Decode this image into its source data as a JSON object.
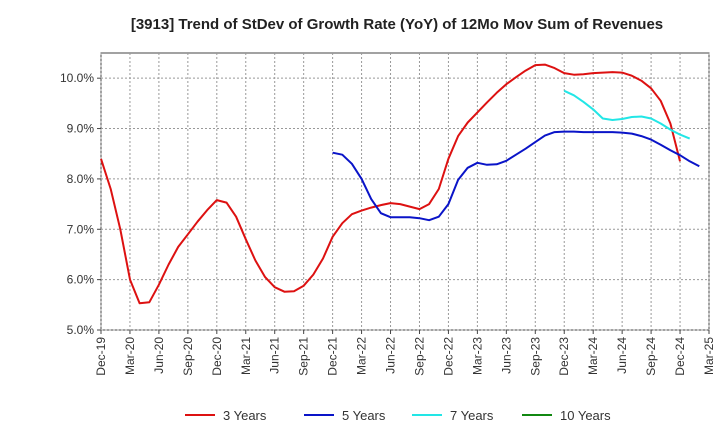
{
  "chart_data": {
    "type": "line",
    "title": "[3913]  Trend of StDev of Growth Rate (YoY) of 12Mo Mov Sum of Revenues",
    "xlabel": "",
    "ylabel": "",
    "ylim": [
      5.0,
      10.5
    ],
    "yticks": [
      5.0,
      6.0,
      7.0,
      8.0,
      9.0,
      10.0
    ],
    "ytick_labels": [
      "5.0%",
      "6.0%",
      "7.0%",
      "8.0%",
      "9.0%",
      "10.0%"
    ],
    "x_tick_labels": [
      "Dec-19",
      "Mar-20",
      "Jun-20",
      "Sep-20",
      "Dec-20",
      "Mar-21",
      "Jun-21",
      "Sep-21",
      "Dec-21",
      "Mar-22",
      "Jun-22",
      "Sep-22",
      "Dec-22",
      "Mar-23",
      "Jun-23",
      "Sep-23",
      "Dec-23",
      "Mar-24",
      "Jun-24",
      "Sep-24",
      "Dec-24",
      "Mar-25"
    ],
    "grid": true,
    "legend_position": "bottom",
    "series": [
      {
        "name": "3 Years",
        "color": "#dd1111",
        "start_month_index": 0,
        "values": [
          8.4,
          7.8,
          7.0,
          6.0,
          5.53,
          5.55,
          5.9,
          6.3,
          6.65,
          6.9,
          7.15,
          7.38,
          7.58,
          7.53,
          7.25,
          6.8,
          6.38,
          6.05,
          5.85,
          5.76,
          5.77,
          5.88,
          6.1,
          6.42,
          6.85,
          7.12,
          7.3,
          7.37,
          7.43,
          7.48,
          7.52,
          7.5,
          7.45,
          7.4,
          7.5,
          7.8,
          8.4,
          8.85,
          9.12,
          9.32,
          9.52,
          9.71,
          9.88,
          10.02,
          10.15,
          10.26,
          10.27,
          10.2,
          10.1,
          10.07,
          10.08,
          10.1,
          10.11,
          10.12,
          10.11,
          10.05,
          9.95,
          9.8,
          9.55,
          9.1,
          8.35
        ]
      },
      {
        "name": "5 Years",
        "color": "#0a14c8",
        "start_month_index": 24,
        "values": [
          8.52,
          8.48,
          8.3,
          8.0,
          7.6,
          7.32,
          7.24,
          7.24,
          7.24,
          7.22,
          7.18,
          7.25,
          7.5,
          7.98,
          8.22,
          8.32,
          8.28,
          8.29,
          8.36,
          8.48,
          8.6,
          8.73,
          8.86,
          8.93,
          8.94,
          8.94,
          8.93,
          8.93,
          8.93,
          8.93,
          8.92,
          8.9,
          8.85,
          8.78,
          8.68,
          8.57,
          8.47,
          8.35,
          8.25
        ]
      },
      {
        "name": "7 Years",
        "color": "#22e6e6",
        "start_month_index": 48,
        "values": [
          9.75,
          9.66,
          9.53,
          9.38,
          9.2,
          9.17,
          9.19,
          9.23,
          9.24,
          9.2,
          9.1,
          8.98,
          8.88,
          8.8
        ]
      },
      {
        "name": "10 Years",
        "color": "#118811",
        "start_month_index": 0,
        "values": []
      }
    ]
  }
}
